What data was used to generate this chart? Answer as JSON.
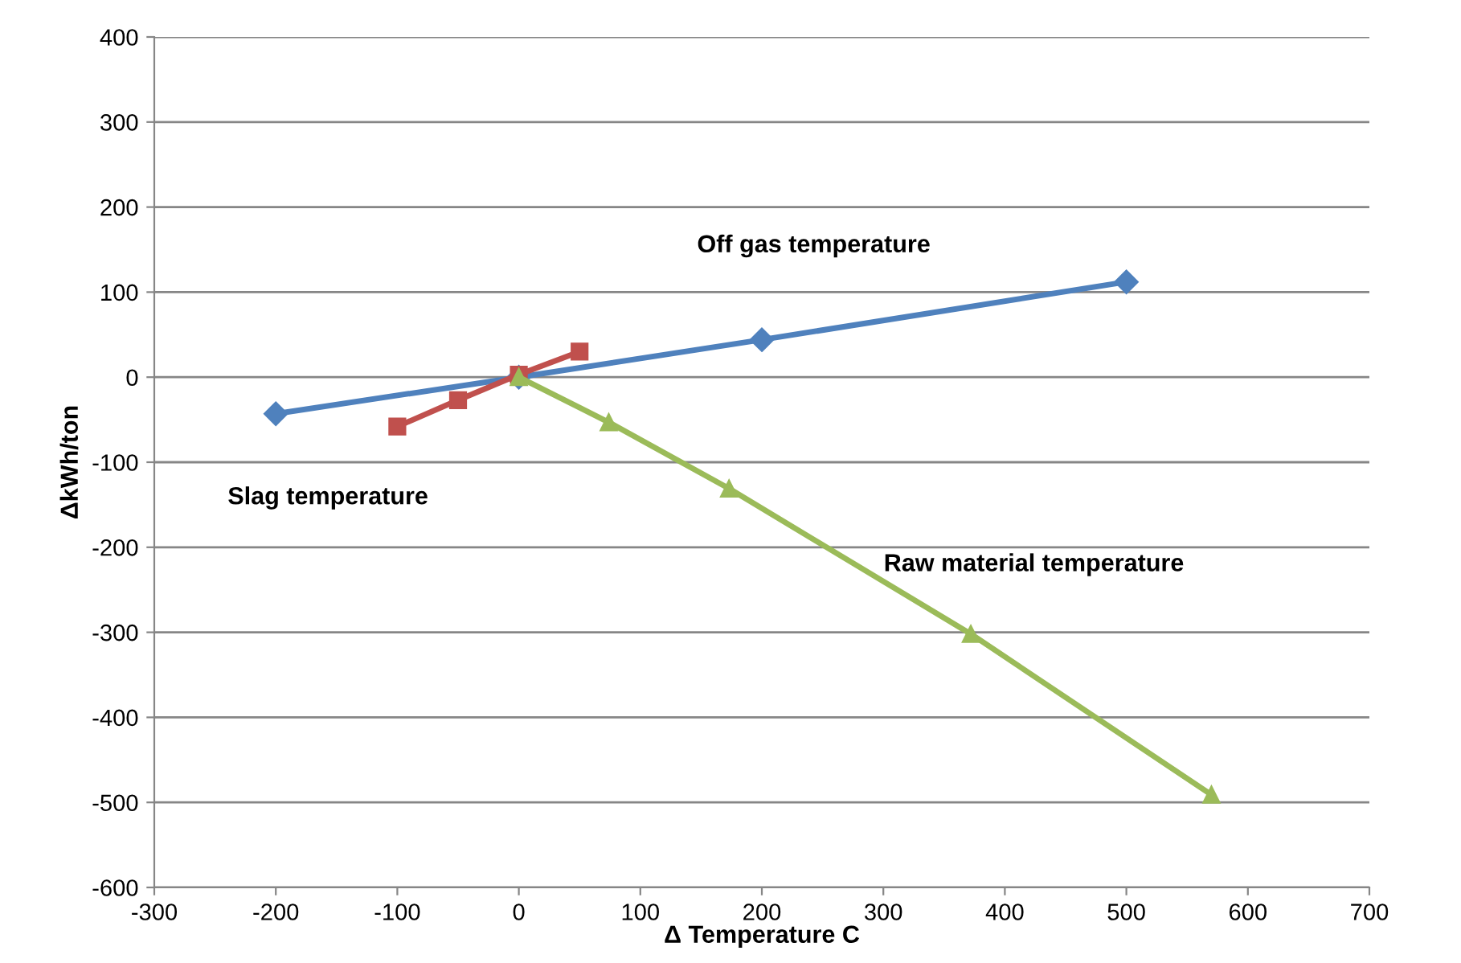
{
  "chart_data": {
    "type": "line",
    "xlabel": "Δ Temperature C",
    "ylabel": "ΔkWh/ton",
    "xlim": [
      -300,
      700
    ],
    "xticks": [
      -300,
      -200,
      -100,
      0,
      100,
      200,
      300,
      400,
      500,
      600,
      700
    ],
    "ylim": [
      -600,
      400
    ],
    "yticks": [
      -600,
      -500,
      -400,
      -300,
      -200,
      -100,
      0,
      100,
      200,
      300,
      400
    ],
    "grid": "y",
    "line_style": "solid",
    "series": [
      {
        "name": "Off gas temperature",
        "color": "#4f81bd",
        "marker": "diamond",
        "x": [
          -200,
          0,
          200,
          500
        ],
        "values": [
          -43,
          0,
          44,
          112
        ]
      },
      {
        "name": "Slag temperature",
        "color": "#c0504d",
        "marker": "square",
        "x": [
          -100,
          -50,
          0,
          50
        ],
        "values": [
          -58,
          -27,
          3,
          30
        ]
      },
      {
        "name": "Raw material temperature",
        "color": "#9bbb59",
        "marker": "triangle",
        "x": [
          0,
          74,
          173,
          372,
          570
        ],
        "values": [
          0,
          -53,
          -131,
          -302,
          -491
        ]
      }
    ]
  }
}
